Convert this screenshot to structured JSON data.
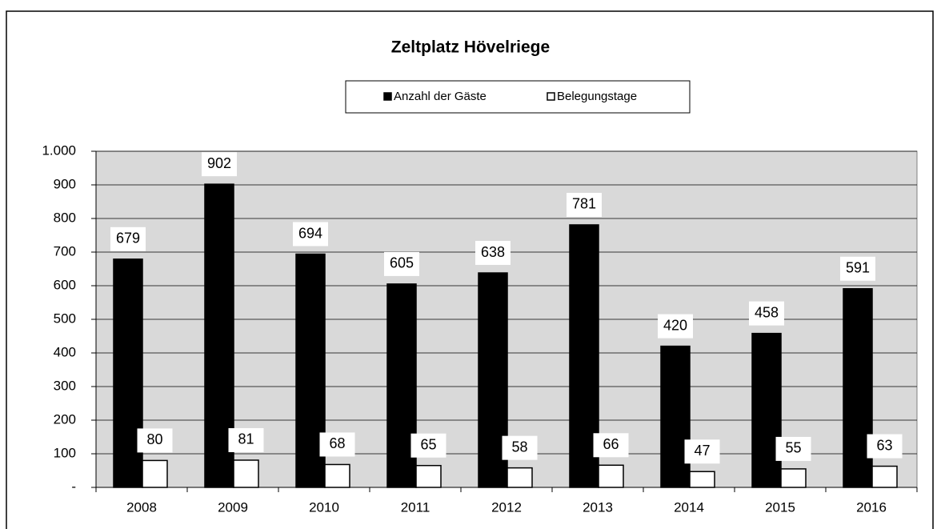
{
  "chart_data": {
    "type": "bar",
    "title": "Zeltplatz Hövelriege",
    "categories": [
      "2008",
      "2009",
      "2010",
      "2011",
      "2012",
      "2013",
      "2014",
      "2015",
      "2016"
    ],
    "series": [
      {
        "name": "Anzahl der Gäste",
        "color": "#000000",
        "values": [
          679,
          902,
          694,
          605,
          638,
          781,
          420,
          458,
          591
        ]
      },
      {
        "name": "Belegungstage",
        "color": "#ffffff",
        "values": [
          80,
          81,
          68,
          65,
          58,
          66,
          47,
          55,
          63
        ]
      }
    ],
    "ylim": [
      0,
      1000
    ],
    "yticks": [
      {
        "value": 0,
        "label": "-"
      },
      100,
      200,
      300,
      400,
      500,
      600,
      700,
      800,
      900,
      {
        "value": 1000,
        "label": "1.000"
      }
    ],
    "grid": true,
    "legend": "top"
  }
}
